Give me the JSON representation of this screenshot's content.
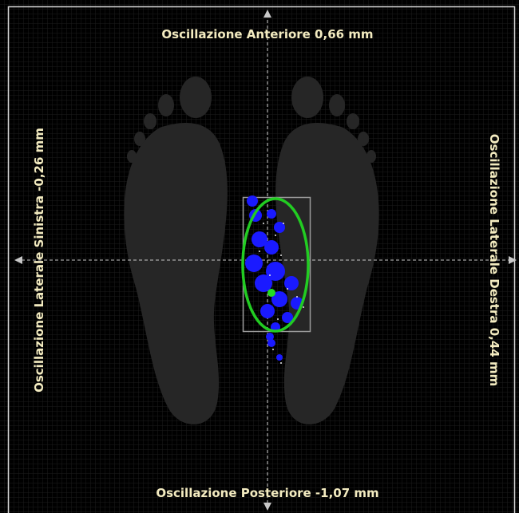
{
  "labels": {
    "anterior": "Oscillazione Anteriore 0,66 mm",
    "left": "Oscillazione Laterale Sinistra -0,26 mm",
    "right": "Oscillazione Laterale Destra 0,44 mm",
    "posterior": "Oscillazione Posteriore -1,07 mm"
  }
}
